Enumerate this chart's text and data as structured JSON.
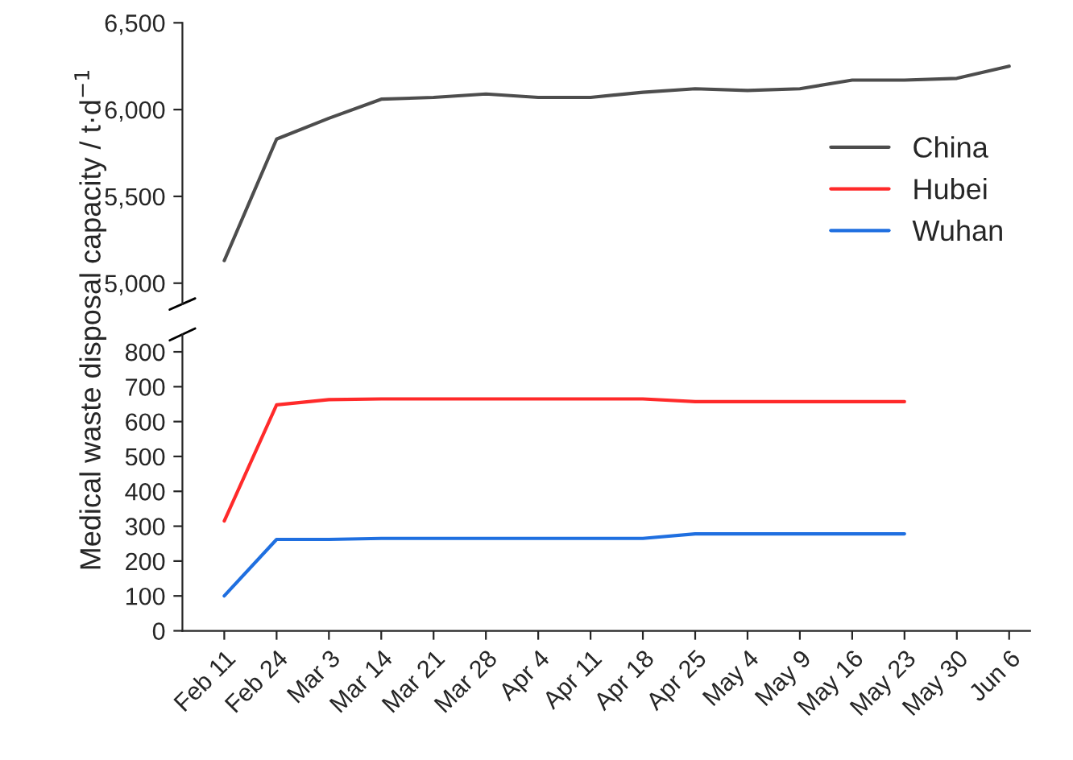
{
  "chart_data": [
    {
      "type": "line",
      "categories": [
        null,
        null,
        null,
        null,
        null,
        null,
        null,
        null,
        null,
        null,
        null,
        null,
        null,
        null,
        null,
        null
      ],
      "series": [
        {
          "name": "China",
          "color": "#4d4d4d",
          "values": [
            5130,
            5830,
            5950,
            6060,
            6070,
            6090,
            6070,
            6070,
            6100,
            6120,
            6110,
            6120,
            6170,
            6170,
            6180,
            6250
          ]
        }
      ],
      "ylim": [
        4880,
        6500
      ],
      "yticks": [
        {
          "value": 5000,
          "label": "5,000"
        },
        {
          "value": 5500,
          "label": "5,500"
        },
        {
          "value": 6000,
          "label": "6,000"
        },
        {
          "value": 6500,
          "label": "6,500"
        }
      ],
      "tick_labels": "y",
      "legend": "right",
      "grid": false,
      "marker": "none",
      "line_style": "solid"
    },
    {
      "type": "line",
      "categories": [
        "Feb 11",
        "Feb 24",
        "Mar 3",
        "Mar 14",
        "Mar 21",
        "Mar 28",
        "Apr 4",
        "Apr 11",
        "Apr 18",
        "Apr 25",
        "May 4",
        "May 9",
        "May 16",
        "May 23",
        "May 30",
        "Jun 6"
      ],
      "series": [
        {
          "name": "Hubei",
          "color": "#ff2a2a",
          "values": [
            315,
            648,
            663,
            665,
            665,
            665,
            665,
            665,
            665,
            657,
            657,
            657,
            657,
            657,
            null,
            null
          ]
        },
        {
          "name": "Wuhan",
          "color": "#1f6fe0",
          "values": [
            100,
            262,
            262,
            265,
            265,
            265,
            265,
            265,
            265,
            278,
            278,
            278,
            278,
            278,
            null,
            null
          ]
        }
      ],
      "ylabel": "Medical waste disposal capacity / t·d$^{−1}$",
      "ylim": [
        0,
        850
      ],
      "yticks": [
        0,
        100,
        200,
        300,
        400,
        500,
        600,
        700,
        800
      ],
      "legend": "right",
      "grid": false,
      "marker": "none",
      "line_style": "solid"
    }
  ]
}
